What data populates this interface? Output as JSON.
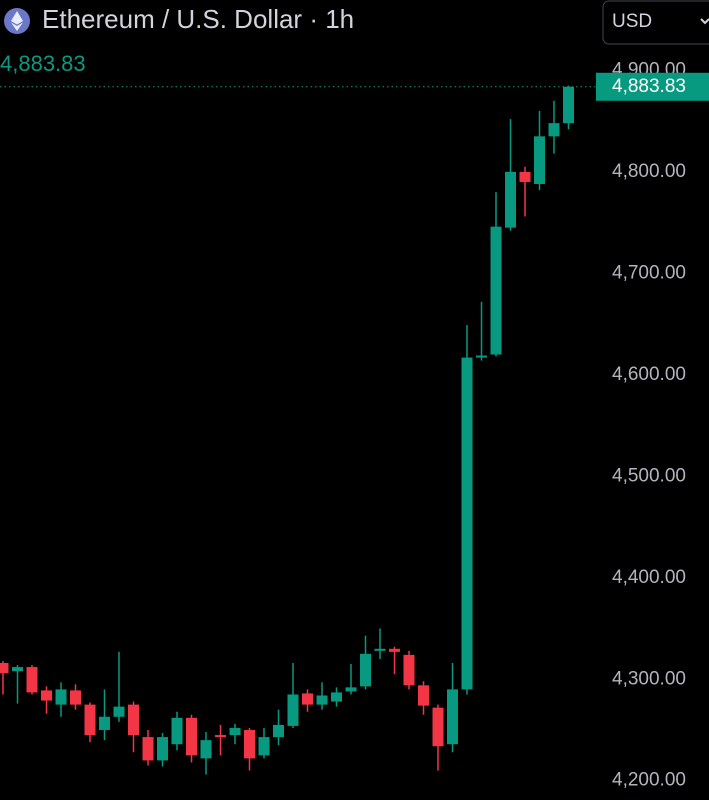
{
  "chart_data": {
    "type": "candlestick",
    "title": "Ethereum / U.S. Dollar · 1h",
    "currency": "USD",
    "last_price": 4883.83,
    "last_price_label": "4,883.83",
    "up_color": "#089981",
    "down_color": "#f23645",
    "ylim": [
      4181,
      4925
    ],
    "yticks": [
      {
        "value": 4200,
        "label": "4,200.00"
      },
      {
        "value": 4300,
        "label": "4,300.00"
      },
      {
        "value": 4400,
        "label": "4,400.00"
      },
      {
        "value": 4500,
        "label": "4,500.00"
      },
      {
        "value": 4600,
        "label": "4,600.00"
      },
      {
        "value": 4700,
        "label": "4,700.00"
      },
      {
        "value": 4800,
        "label": "4,800.00"
      },
      {
        "value": 4900,
        "label": "4,900.00"
      }
    ],
    "open": [
      4316,
      4308,
      4312,
      4289,
      4275,
      4289,
      4275,
      4250,
      4263,
      4275,
      4243,
      4220,
      4236,
      4262,
      4222,
      4245,
      4245,
      4250,
      4225,
      4243,
      4254,
      4286,
      4275,
      4278,
      4288,
      4293,
      4328,
      4330,
      4324,
      4294,
      4272,
      4236,
      4290,
      4617,
      4620,
      4745,
      4800,
      4788,
      4835,
      4848
    ],
    "high": [
      4318,
      4314,
      4314,
      4293,
      4297,
      4295,
      4277,
      4290,
      4327,
      4278,
      4250,
      4247,
      4268,
      4265,
      4248,
      4255,
      4256,
      4252,
      4252,
      4270,
      4316,
      4290,
      4297,
      4292,
      4315,
      4343,
      4350,
      4332,
      4328,
      4298,
      4275,
      4316,
      4649,
      4672,
      4780,
      4852,
      4805,
      4860,
      4870,
      4885
    ],
    "low": [
      4285,
      4276,
      4285,
      4266,
      4263,
      4270,
      4238,
      4240,
      4258,
      4228,
      4215,
      4214,
      4230,
      4218,
      4206,
      4225,
      4236,
      4210,
      4222,
      4235,
      4252,
      4268,
      4270,
      4273,
      4285,
      4290,
      4320,
      4305,
      4290,
      4265,
      4210,
      4228,
      4285,
      4614,
      4618,
      4742,
      4756,
      4782,
      4818,
      4842
    ],
    "close": [
      4306,
      4312,
      4287,
      4279,
      4290,
      4275,
      4245,
      4263,
      4273,
      4245,
      4220,
      4243,
      4262,
      4225,
      4240,
      4243,
      4252,
      4222,
      4243,
      4255,
      4285,
      4275,
      4284,
      4287,
      4292,
      4325,
      4330,
      4327,
      4294,
      4274,
      4234,
      4290,
      4617,
      4619,
      4746,
      4800,
      4790,
      4835,
      4848,
      4883.83
    ]
  }
}
